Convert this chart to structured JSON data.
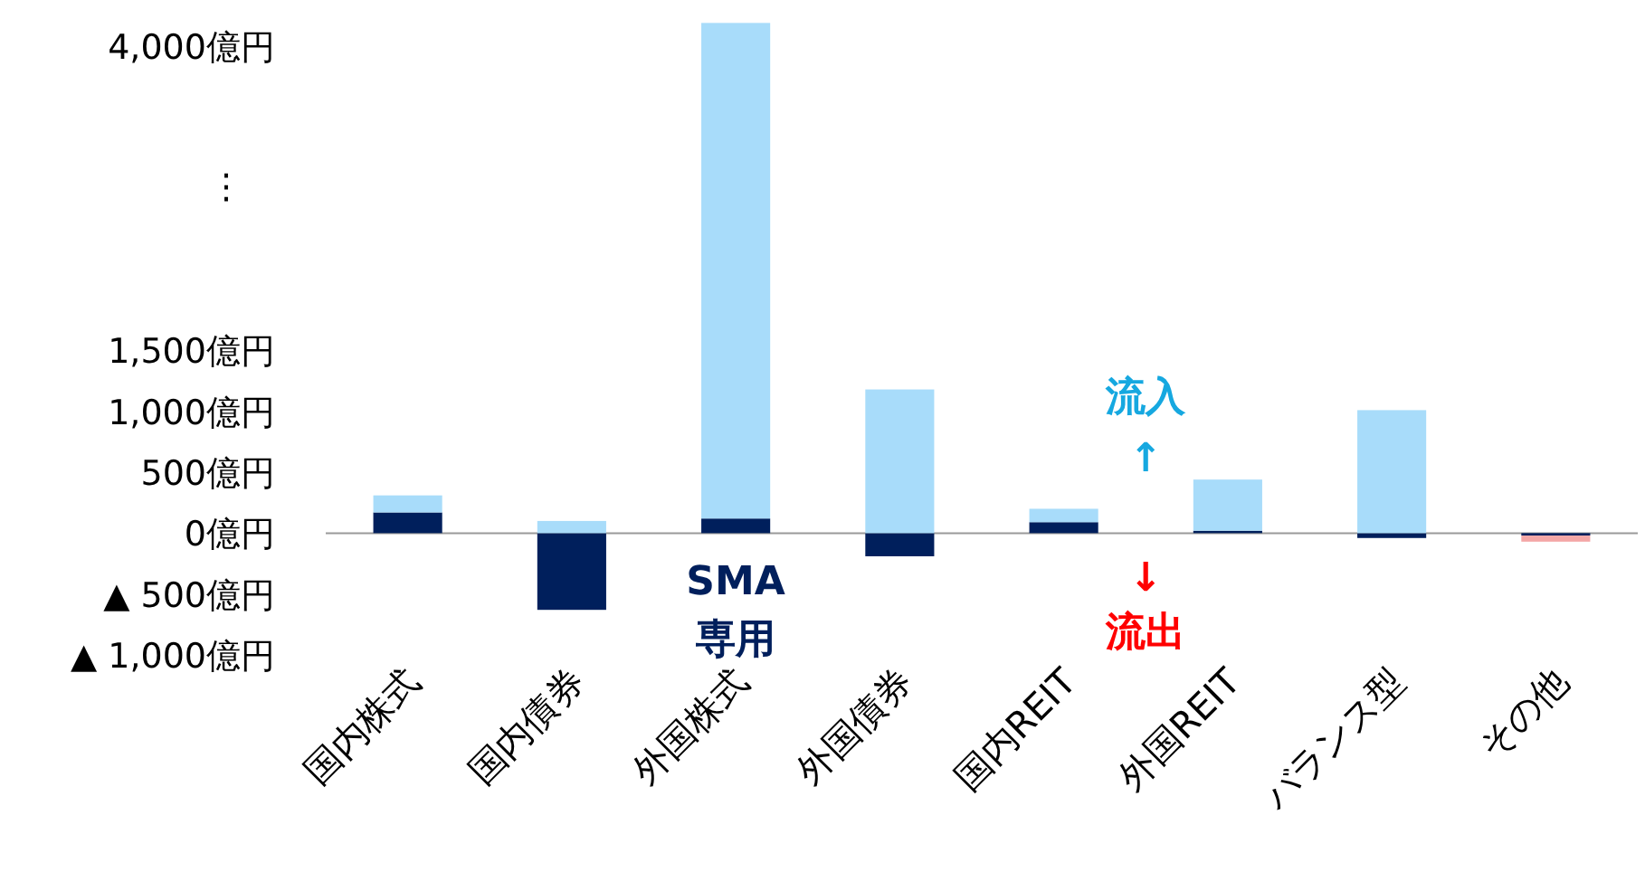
{
  "chart_data": {
    "type": "bar",
    "stacked": true,
    "categories": [
      "国内株式",
      "国内債券",
      "外国株式",
      "外国債券",
      "国内REIT",
      "外国REIT",
      "バランス型",
      "その他"
    ],
    "series": [
      {
        "name": "SMA専用",
        "color": "#001f5c",
        "values": [
          170,
          -630,
          120,
          -190,
          90,
          20,
          -40,
          -20
        ]
      },
      {
        "colors": [
          "#a8dcfa",
          "#a8dcfa",
          "#a8dcfa",
          "#a8dcfa",
          "#a8dcfa",
          "#a8dcfa",
          "#a8dcfa",
          "#f4a6a6"
        ],
        "values": [
          140,
          100,
          4070,
          1180,
          110,
          420,
          1010,
          -50
        ]
      }
    ],
    "ylim": [
      -1000,
      4200
    ],
    "yticks": [
      {
        "value": 4000,
        "label": "4,000億円"
      },
      {
        "value": 1500,
        "label": "1,500億円"
      },
      {
        "value": 1000,
        "label": "1,000億円"
      },
      {
        "value": 500,
        "label": "500億円"
      },
      {
        "value": 0,
        "label": "0億円"
      },
      {
        "value": -500,
        "label": "▲ 500億円"
      },
      {
        "value": -1000,
        "label": "▲ 1,000億円"
      }
    ],
    "annotations": [
      "⋮",
      "流入\n↑",
      "↓\n流出"
    ]
  }
}
